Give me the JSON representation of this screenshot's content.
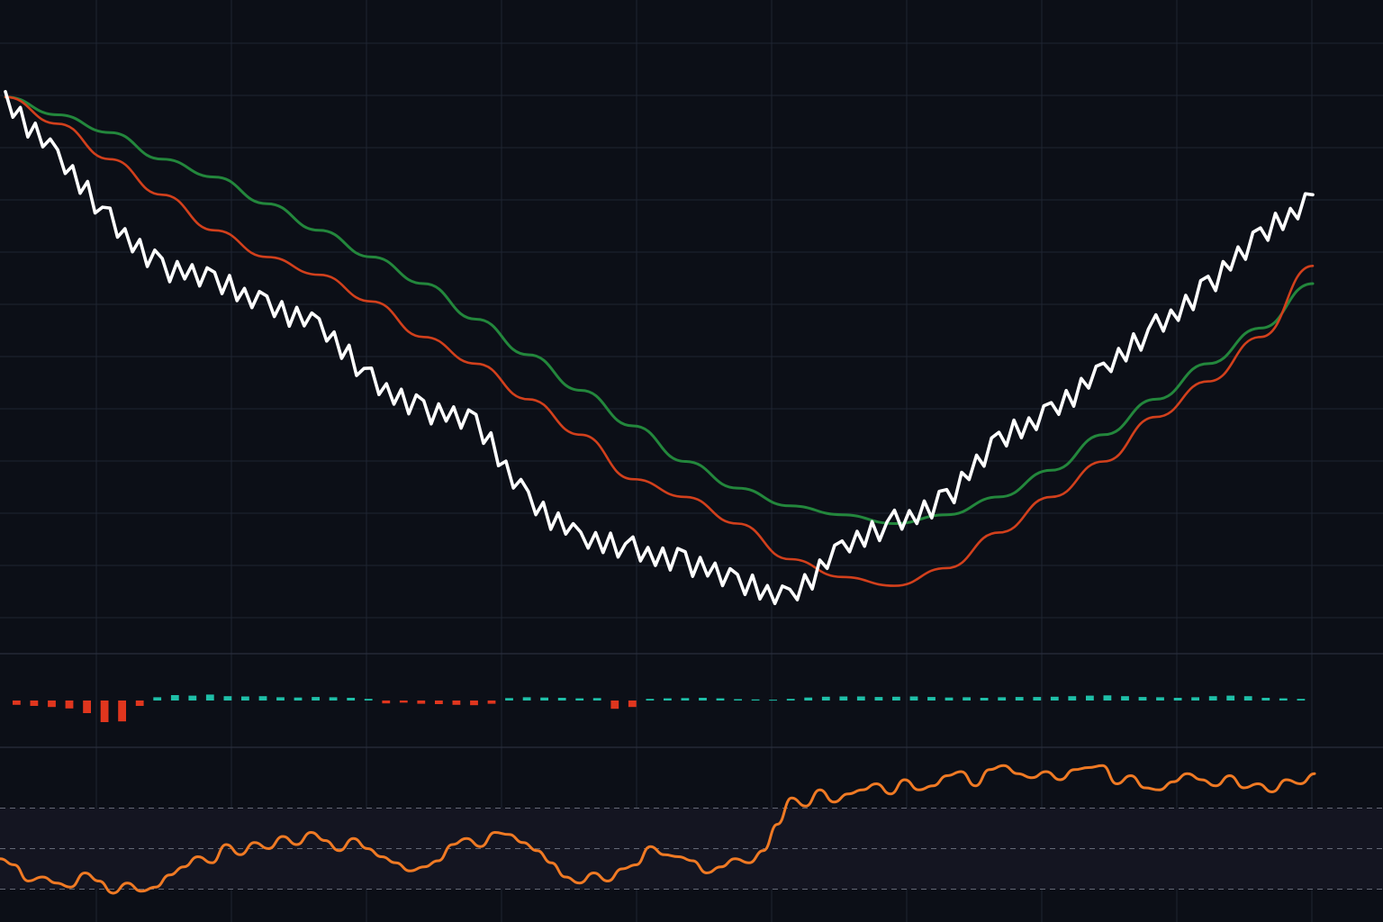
{
  "colors": {
    "background": "#0c0f17",
    "grid": "#1e2432",
    "price": "#ffffff",
    "ma_fast": "#d2401c",
    "ma_slow": "#23873c",
    "hist_positive": "#1fbfa8",
    "hist_negative": "#e0361e",
    "oscillator": "#f07a24",
    "band_fill": "#141521",
    "band_line": "#7a7f8c",
    "divider": "#2a2f3c"
  },
  "chart_data": [
    {
      "type": "line",
      "panel": "price",
      "grid": true,
      "legend": "none",
      "x": [
        0,
        4,
        8,
        12,
        16,
        20,
        24,
        28,
        32,
        36,
        40,
        44,
        48,
        52,
        56,
        60,
        64,
        68,
        72,
        76,
        80,
        84,
        88,
        92,
        96,
        100
      ],
      "series": [
        {
          "id": "price",
          "values": [
            100,
            93,
            86,
            81,
            79,
            77,
            74,
            68,
            65,
            63,
            55,
            50,
            49,
            48,
            45,
            44,
            49,
            52,
            55,
            61,
            65,
            69,
            74,
            79,
            84,
            89
          ]
        },
        {
          "id": "ma_fast",
          "values": [
            100,
            97,
            93,
            89,
            85,
            82,
            80,
            77,
            73,
            70,
            66,
            62,
            57,
            55,
            52,
            48,
            46,
            45,
            47,
            51,
            55,
            59,
            64,
            68,
            73,
            81
          ]
        },
        {
          "id": "ma_slow",
          "values": [
            100,
            98,
            96,
            93,
            91,
            88,
            85,
            82,
            79,
            75,
            71,
            67,
            63,
            59,
            56,
            54,
            53,
            52,
            53,
            55,
            58,
            62,
            66,
            70,
            74,
            79
          ]
        }
      ],
      "ylim": [
        40,
        102
      ]
    },
    {
      "type": "bar",
      "panel": "histogram",
      "values": [
        -1.2,
        -1.5,
        -1.8,
        -2.2,
        -3.5,
        -6.0,
        -5.8,
        -1.5,
        1.2,
        2.0,
        1.8,
        2.2,
        1.6,
        1.5,
        1.6,
        1.2,
        1.1,
        1.3,
        1.2,
        1.0,
        0.6,
        -0.8,
        -0.6,
        -0.9,
        -1.0,
        -1.2,
        -1.3,
        -0.9,
        0.9,
        1.2,
        1.1,
        1.0,
        0.8,
        0.9,
        -2.3,
        -1.8,
        0.6,
        0.8,
        0.9,
        1.0,
        0.8,
        0.5,
        0.4,
        0.3,
        0.6,
        1.1,
        1.4,
        1.5,
        1.5,
        1.3,
        1.4,
        1.5,
        1.3,
        1.1,
        1.2,
        1.0,
        1.2,
        1.3,
        1.3,
        1.4,
        1.6,
        1.8,
        1.9,
        1.6,
        1.3,
        1.2,
        1.0,
        1.2,
        1.6,
        1.8,
        1.6,
        1.0,
        0.8,
        0.6
      ],
      "ylim": [
        -7,
        4
      ]
    },
    {
      "type": "line",
      "panel": "oscillator",
      "reference_lines": [
        70,
        50,
        30
      ],
      "values": [
        45,
        42,
        34,
        36,
        33,
        31,
        38,
        34,
        28,
        33,
        29,
        31,
        37,
        41,
        46,
        43,
        52,
        47,
        53,
        50,
        56,
        52,
        58,
        54,
        49,
        55,
        50,
        46,
        43,
        39,
        41,
        44,
        52,
        55,
        51,
        58,
        57,
        53,
        49,
        43,
        36,
        33,
        38,
        34,
        40,
        42,
        51,
        47,
        46,
        44,
        38,
        41,
        45,
        43,
        49,
        62,
        75,
        71,
        79,
        73,
        77,
        79,
        82,
        77,
        84,
        79,
        81,
        86,
        88,
        81,
        89,
        91,
        87,
        85,
        88,
        84,
        89,
        90,
        91,
        82,
        86,
        80,
        79,
        83,
        87,
        84,
        81,
        86,
        80,
        82,
        78,
        84,
        82,
        87
      ],
      "ylim": [
        20,
        100
      ]
    }
  ]
}
